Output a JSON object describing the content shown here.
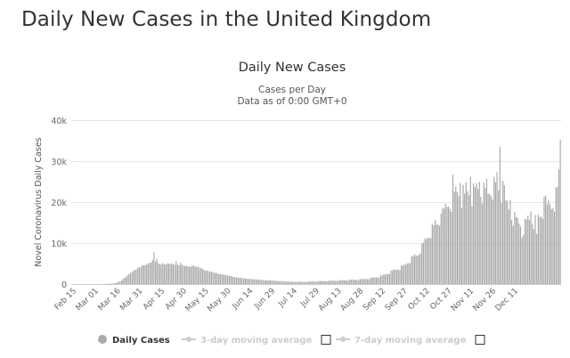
{
  "page": {
    "title": "Daily New Cases in the United Kingdom"
  },
  "chart_data": {
    "type": "bar",
    "title": "Daily New Cases",
    "subtitle_line1": "Cases per Day",
    "subtitle_line2": "Data as of 0:00 GMT+0",
    "ylabel": "Novel Coronavirus Daily Cases",
    "xlabel": "",
    "ylim": [
      0,
      40000
    ],
    "y_ticks": [
      0,
      10000,
      20000,
      30000,
      40000
    ],
    "y_tick_labels": [
      "0",
      "10k",
      "20k",
      "30k",
      "40k"
    ],
    "x_tick_labels": [
      "Feb 15",
      "Mar 01",
      "Mar 16",
      "Mar 31",
      "Apr 15",
      "Apr 30",
      "May 15",
      "May 30",
      "Jun 14",
      "Jun 29",
      "Jul 14",
      "Jul 29",
      "Aug 13",
      "Aug 28",
      "Sep 12",
      "Sep 27",
      "Oct 12",
      "Oct 27",
      "Nov 11",
      "Nov 26",
      "Dec 11"
    ],
    "first_day": "Feb 15",
    "days_between_ticks": 15,
    "color": "#aaaaaa",
    "grid": true,
    "legend_position": "bottom",
    "legend": [
      {
        "label": "Daily Cases",
        "active": true
      },
      {
        "label": "3-day moving average",
        "active": false
      },
      {
        "label": "7-day moving average",
        "active": false
      }
    ],
    "anchors": [
      [
        0,
        0
      ],
      [
        20,
        10
      ],
      [
        28,
        150
      ],
      [
        32,
        650
      ],
      [
        36,
        1800
      ],
      [
        40,
        3000
      ],
      [
        44,
        3900
      ],
      [
        48,
        4600
      ],
      [
        52,
        5200
      ],
      [
        55,
        6000
      ],
      [
        58,
        5000
      ],
      [
        62,
        4900
      ],
      [
        66,
        5000
      ],
      [
        70,
        4700
      ],
      [
        74,
        4600
      ],
      [
        78,
        4300
      ],
      [
        82,
        4500
      ],
      [
        86,
        4000
      ],
      [
        90,
        3400
      ],
      [
        94,
        3000
      ],
      [
        98,
        2600
      ],
      [
        104,
        2200
      ],
      [
        110,
        1700
      ],
      [
        116,
        1400
      ],
      [
        122,
        1200
      ],
      [
        128,
        1000
      ],
      [
        134,
        900
      ],
      [
        140,
        750
      ],
      [
        146,
        620
      ],
      [
        152,
        560
      ],
      [
        158,
        580
      ],
      [
        164,
        640
      ],
      [
        170,
        720
      ],
      [
        176,
        800
      ],
      [
        182,
        900
      ],
      [
        188,
        1000
      ],
      [
        194,
        1100
      ],
      [
        200,
        1300
      ],
      [
        205,
        1600
      ],
      [
        210,
        2000
      ],
      [
        214,
        2700
      ],
      [
        218,
        3300
      ],
      [
        222,
        4000
      ],
      [
        225,
        4400
      ],
      [
        228,
        5600
      ],
      [
        231,
        6500
      ],
      [
        234,
        7200
      ],
      [
        237,
        9000
      ],
      [
        240,
        11000
      ],
      [
        243,
        13000
      ],
      [
        246,
        14000
      ],
      [
        249,
        15500
      ],
      [
        252,
        17500
      ],
      [
        255,
        19500
      ],
      [
        258,
        21000
      ],
      [
        261,
        22500
      ],
      [
        264,
        21500
      ],
      [
        267,
        23000
      ],
      [
        270,
        22000
      ],
      [
        273,
        22500
      ],
      [
        276,
        23500
      ],
      [
        279,
        22500
      ],
      [
        282,
        22000
      ],
      [
        285,
        24000
      ],
      [
        288,
        23500
      ],
      [
        291,
        21500
      ],
      [
        294,
        19500
      ],
      [
        297,
        17500
      ],
      [
        300,
        16000
      ],
      [
        303,
        14800
      ],
      [
        306,
        14000
      ],
      [
        309,
        15500
      ],
      [
        312,
        16000
      ],
      [
        315,
        15000
      ],
      [
        318,
        17000
      ],
      [
        321,
        18000
      ],
      [
        324,
        19500
      ],
      [
        327,
        20500
      ],
      [
        330,
        23500
      ],
      [
        332,
        25000
      ]
    ],
    "overrides": [
      [
        55,
        7800
      ],
      [
        57,
        6200
      ],
      [
        61,
        5100
      ],
      [
        70,
        5600
      ],
      [
        73,
        5200
      ],
      [
        236,
        7500
      ],
      [
        246,
        15600
      ],
      [
        250,
        17200
      ],
      [
        258,
        26700
      ],
      [
        263,
        24700
      ],
      [
        266,
        22100
      ],
      [
        270,
        26200
      ],
      [
        276,
        25000
      ],
      [
        281,
        25700
      ],
      [
        288,
        27300
      ],
      [
        290,
        33500
      ],
      [
        292,
        25200
      ],
      [
        293,
        24100
      ],
      [
        297,
        20500
      ],
      [
        302,
        16100
      ],
      [
        305,
        11300
      ],
      [
        311,
        17700
      ],
      [
        315,
        12200
      ],
      [
        320,
        21300
      ],
      [
        321,
        21600
      ],
      [
        325,
        18300
      ],
      [
        330,
        28000
      ],
      [
        331,
        35300
      ]
    ],
    "last_day_index": 331
  }
}
